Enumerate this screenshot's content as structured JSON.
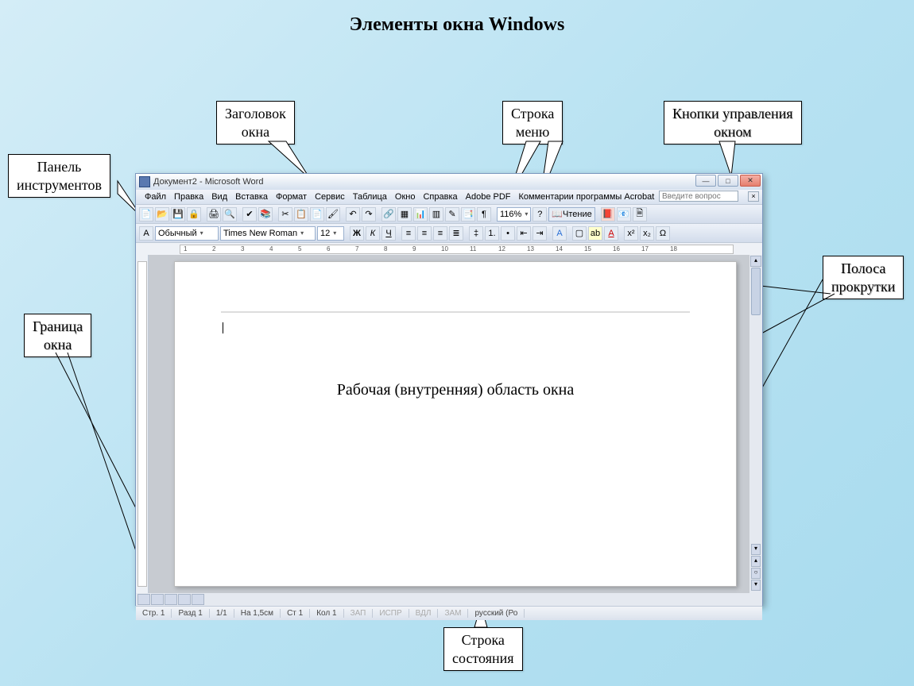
{
  "slide": {
    "title": "Элементы окна Windows"
  },
  "callouts": {
    "title_bar": "Заголовок\nокна",
    "menu_bar": "Строка\nменю",
    "window_controls": "Кнопки управления\nокном",
    "toolbar": "Панель\nинструментов",
    "scrollbar": "Полоса\nпрокрутки",
    "border": "Граница\nокна",
    "statusbar": "Строка\nсостояния"
  },
  "window": {
    "title": "Документ2 - Microsoft Word",
    "menu": [
      "Файл",
      "Правка",
      "Вид",
      "Вставка",
      "Формат",
      "Сервис",
      "Таблица",
      "Окно",
      "Справка",
      "Adobe PDF",
      "Комментарии программы Acrobat"
    ],
    "ask_placeholder": "Введите вопрос",
    "toolbar1": {
      "zoom": "116%",
      "reading": "Чтение"
    },
    "toolbar2": {
      "style": "Обычный",
      "font": "Times New Roman",
      "size": "12"
    },
    "workarea_label": "Рабочая (внутренняя) область окна",
    "status": {
      "page": "Стр. 1",
      "section": "Разд 1",
      "pages": "1/1",
      "at": "На 1,5см",
      "line": "Ст 1",
      "col": "Кол 1",
      "modes": [
        "ЗАП",
        "ИСПР",
        "ВДЛ",
        "ЗАМ"
      ],
      "lang": "русский (Ро"
    }
  },
  "ruler_numbers": [
    "1",
    "2",
    "3",
    "4",
    "5",
    "6",
    "7",
    "8",
    "9",
    "10",
    "11",
    "12",
    "13",
    "14",
    "15",
    "16",
    "17",
    "18"
  ],
  "colors": {
    "callout_bg": "#ffffff",
    "callout_border": "#000000",
    "window_chrome1": "#eef2f9",
    "window_chrome2": "#d2dceb"
  }
}
